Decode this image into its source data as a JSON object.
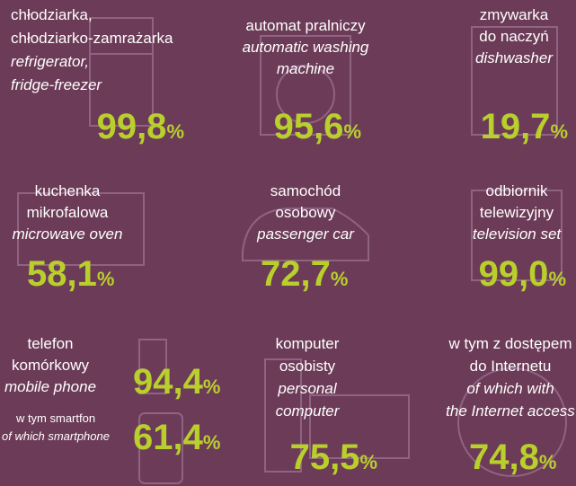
{
  "items": [
    {
      "pl": [
        "chłodziarka,",
        "chłodziarko-zamrażarka"
      ],
      "en": [
        "refrigerator,",
        "fridge-freezer"
      ],
      "value": "99,8",
      "unit": "%"
    },
    {
      "pl": [
        "automat pralniczy"
      ],
      "en": [
        "automatic washing",
        "machine"
      ],
      "value": "95,6",
      "unit": "%"
    },
    {
      "pl": [
        "zmywarka",
        "do naczyń"
      ],
      "en": [
        "dishwasher"
      ],
      "value": "19,7",
      "unit": "%"
    },
    {
      "pl": [
        "kuchenka",
        "mikrofalowa"
      ],
      "en": [
        "microwave oven"
      ],
      "value": "58,1",
      "unit": "%"
    },
    {
      "pl": [
        "samochód",
        "osobowy"
      ],
      "en": [
        "passenger car"
      ],
      "value": "72,7",
      "unit": "%"
    },
    {
      "pl": [
        "odbiornik",
        "telewizyjny"
      ],
      "en": [
        "television set"
      ],
      "value": "99,0",
      "unit": "%"
    },
    {
      "pl": [
        "telefon",
        "komórkowy"
      ],
      "en": [
        "mobile phone"
      ],
      "value": "94,4",
      "unit": "%"
    },
    {
      "pl": [
        "w tym smartfon"
      ],
      "en": [
        "of which smartphone"
      ],
      "value": "61,4",
      "unit": "%"
    },
    {
      "pl": [
        "komputer",
        "osobisty"
      ],
      "en": [
        "personal",
        "computer"
      ],
      "value": "75,5",
      "unit": "%"
    },
    {
      "pl": [
        "w tym z dostępem",
        "do Internetu"
      ],
      "en": [
        "of which with",
        "the Internet access"
      ],
      "value": "74,8",
      "unit": "%"
    }
  ]
}
